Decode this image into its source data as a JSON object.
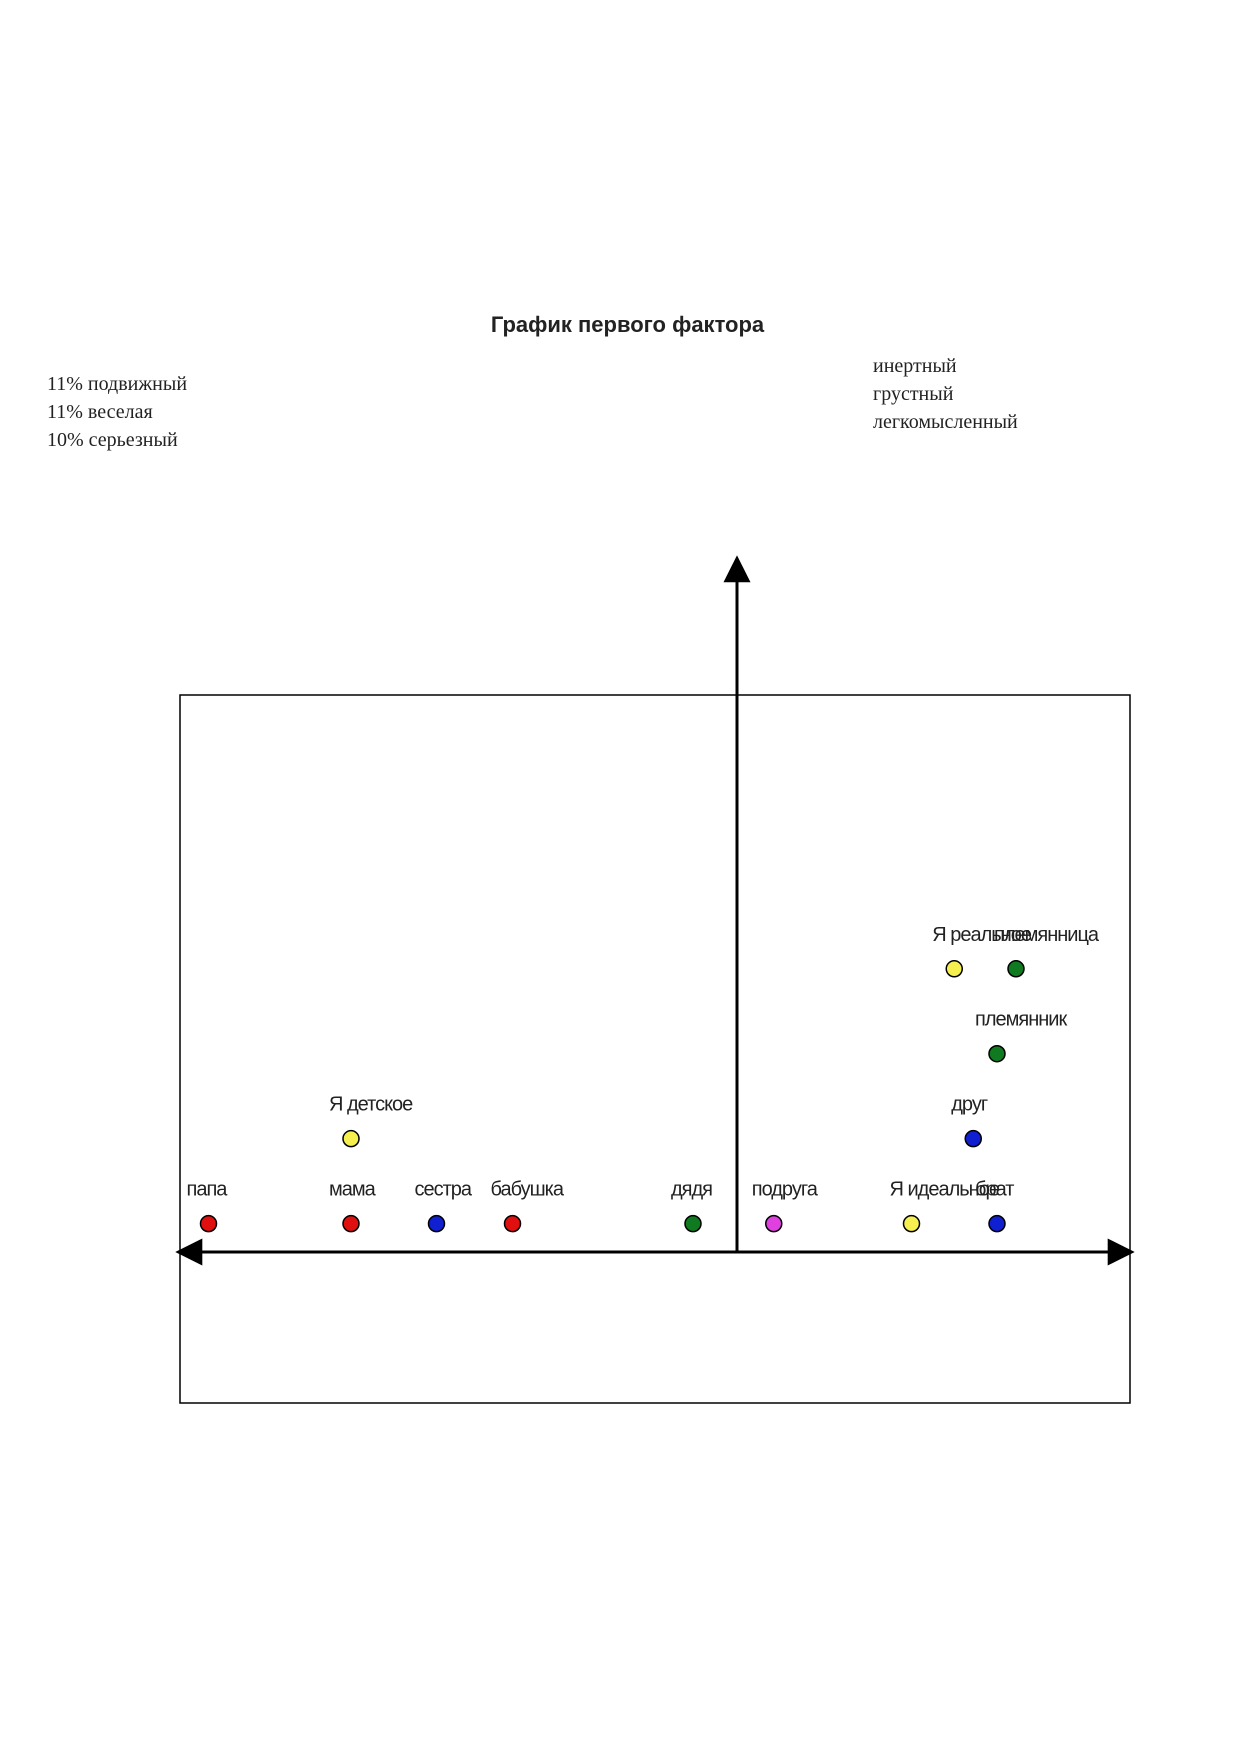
{
  "chart_data": {
    "type": "scatter",
    "title": "График первого фактора",
    "left_pole": [
      "11% подвижный",
      "11% веселая",
      "10% серьезный"
    ],
    "right_pole": [
      "инертный",
      "грустный",
      "легкомысленный"
    ],
    "xlim": [
      -10,
      10
    ],
    "ylim": [
      -3,
      12
    ],
    "grid": false,
    "points": [
      {
        "label": "папа",
        "x": -9.4,
        "y": 0.8,
        "color": "#e01010"
      },
      {
        "label": "мама",
        "x": -6.4,
        "y": 0.8,
        "color": "#e01010"
      },
      {
        "label": "сестра",
        "x": -4.6,
        "y": 0.8,
        "color": "#1020d0"
      },
      {
        "label": "бабушка",
        "x": -3.0,
        "y": 0.8,
        "color": "#e01010"
      },
      {
        "label": "Я детское",
        "x": -6.4,
        "y": 2.6,
        "color": "#f5f050"
      },
      {
        "label": "дядя",
        "x": 0.8,
        "y": 0.8,
        "color": "#0f7a20"
      },
      {
        "label": "подруга",
        "x": 2.5,
        "y": 0.8,
        "color": "#e040e0"
      },
      {
        "label": "Я идеальное",
        "x": 5.4,
        "y": 0.8,
        "color": "#f5f050"
      },
      {
        "label": "брат",
        "x": 7.2,
        "y": 0.8,
        "color": "#1020d0"
      },
      {
        "label": "друг",
        "x": 6.7,
        "y": 2.6,
        "color": "#1020d0"
      },
      {
        "label": "племянник",
        "x": 7.2,
        "y": 4.4,
        "color": "#0f7a20"
      },
      {
        "label": "Я реальное",
        "x": 6.3,
        "y": 6.2,
        "color": "#f5f050"
      },
      {
        "label": "племянница",
        "x": 7.6,
        "y": 6.2,
        "color": "#0f7a20"
      }
    ]
  }
}
